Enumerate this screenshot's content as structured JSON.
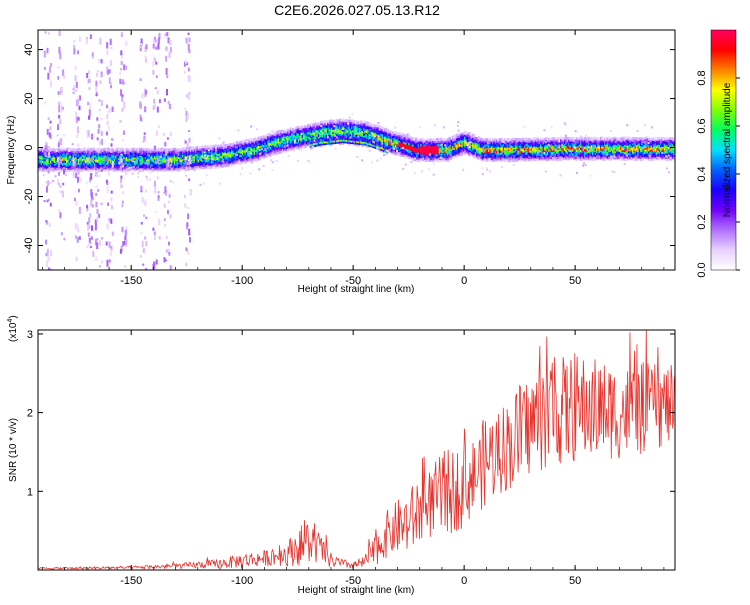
{
  "title": "C2E6.2026.027.05.13.R12",
  "chart_data": [
    {
      "type": "heatmap",
      "xlabel": "Height of straight line (km)",
      "ylabel": "Frequency (Hz)",
      "xlim": [
        -192,
        95
      ],
      "ylim": [
        -50,
        48
      ],
      "xticks": [
        -150,
        -100,
        -50,
        0,
        50
      ],
      "xtick_labels": [
        "-150",
        "-100",
        "-50",
        "0",
        "50"
      ],
      "yticks": [
        -40,
        -20,
        0,
        20,
        40
      ],
      "ytick_labels": [
        "-40",
        "-20",
        "0",
        "20",
        "40"
      ],
      "grid": false,
      "colorbar": {
        "label": "Normalized spectral amplitude",
        "range": [
          0,
          1
        ],
        "ticks": [
          0.0,
          0.2,
          0.4,
          0.6,
          0.8
        ],
        "tick_labels": [
          "0.0",
          "0.2",
          "0.4",
          "0.6",
          "0.8"
        ],
        "colormap": [
          "#ffffff",
          "#e8d0ff",
          "#b070ff",
          "#7000ff",
          "#1a00ff",
          "#0060ff",
          "#00e0ff",
          "#00ff60",
          "#80ff00",
          "#ffff00",
          "#ff8000",
          "#ff0000",
          "#ff0060"
        ]
      },
      "ridge": {
        "x": [
          -192,
          -170,
          -150,
          -130,
          -110,
          -95,
          -85,
          -75,
          -65,
          -55,
          -45,
          -38,
          -33,
          -28,
          -22,
          -15,
          -8,
          -3,
          0,
          3,
          8,
          20,
          40,
          60,
          80,
          95
        ],
        "y": [
          -5,
          -5,
          -5,
          -5,
          -3.5,
          -1,
          2,
          4,
          6,
          7,
          6,
          4,
          2,
          1,
          -1,
          -1,
          -1,
          1,
          2,
          1,
          -1,
          -1,
          -0.5,
          -0.5,
          -0.5,
          -0.5
        ],
        "secondary_y_from_x": -70,
        "secondary_y_to_x": -35
      }
    },
    {
      "type": "line",
      "xlabel": "Height of straight line (km)",
      "ylabel": "SNR (10 * v/v)",
      "y_multiplier_label": "(x10",
      "y_multiplier_exp": "4",
      "y_multiplier_close": ")",
      "xlim": [
        -192,
        95
      ],
      "ylim": [
        0,
        3.05
      ],
      "xticks": [
        -150,
        -100,
        -50,
        0,
        50
      ],
      "xtick_labels": [
        "-150",
        "-100",
        "-50",
        "0",
        "50"
      ],
      "yticks": [
        1,
        2,
        3
      ],
      "ytick_labels": [
        "1",
        "2",
        "3"
      ],
      "grid": false,
      "series_color": "#e8322c",
      "envelope": {
        "x": [
          -192,
          -150,
          -130,
          -110,
          -100,
          -90,
          -80,
          -75,
          -70,
          -65,
          -60,
          -55,
          -50,
          -45,
          -40,
          -35,
          -30,
          -25,
          -20,
          -15,
          -10,
          -5,
          0,
          5,
          10,
          15,
          20,
          25,
          30,
          35,
          40,
          50,
          60,
          70,
          80,
          95
        ],
        "mean": [
          0.02,
          0.03,
          0.05,
          0.08,
          0.12,
          0.15,
          0.2,
          0.3,
          0.35,
          0.28,
          0.12,
          0.08,
          0.06,
          0.1,
          0.25,
          0.45,
          0.55,
          0.6,
          0.75,
          0.85,
          0.95,
          1.0,
          1.1,
          1.2,
          1.4,
          1.5,
          1.6,
          1.7,
          1.85,
          1.95,
          2.0,
          2.05,
          2.05,
          2.0,
          2.05,
          2.1
        ],
        "amp": [
          0.01,
          0.02,
          0.03,
          0.06,
          0.1,
          0.1,
          0.15,
          0.25,
          0.3,
          0.2,
          0.1,
          0.06,
          0.05,
          0.08,
          0.2,
          0.3,
          0.35,
          0.4,
          0.5,
          0.45,
          0.55,
          0.55,
          0.55,
          0.5,
          0.6,
          0.55,
          0.6,
          0.65,
          0.65,
          0.7,
          0.7,
          0.7,
          0.65,
          0.6,
          0.6,
          0.5
        ]
      }
    }
  ]
}
